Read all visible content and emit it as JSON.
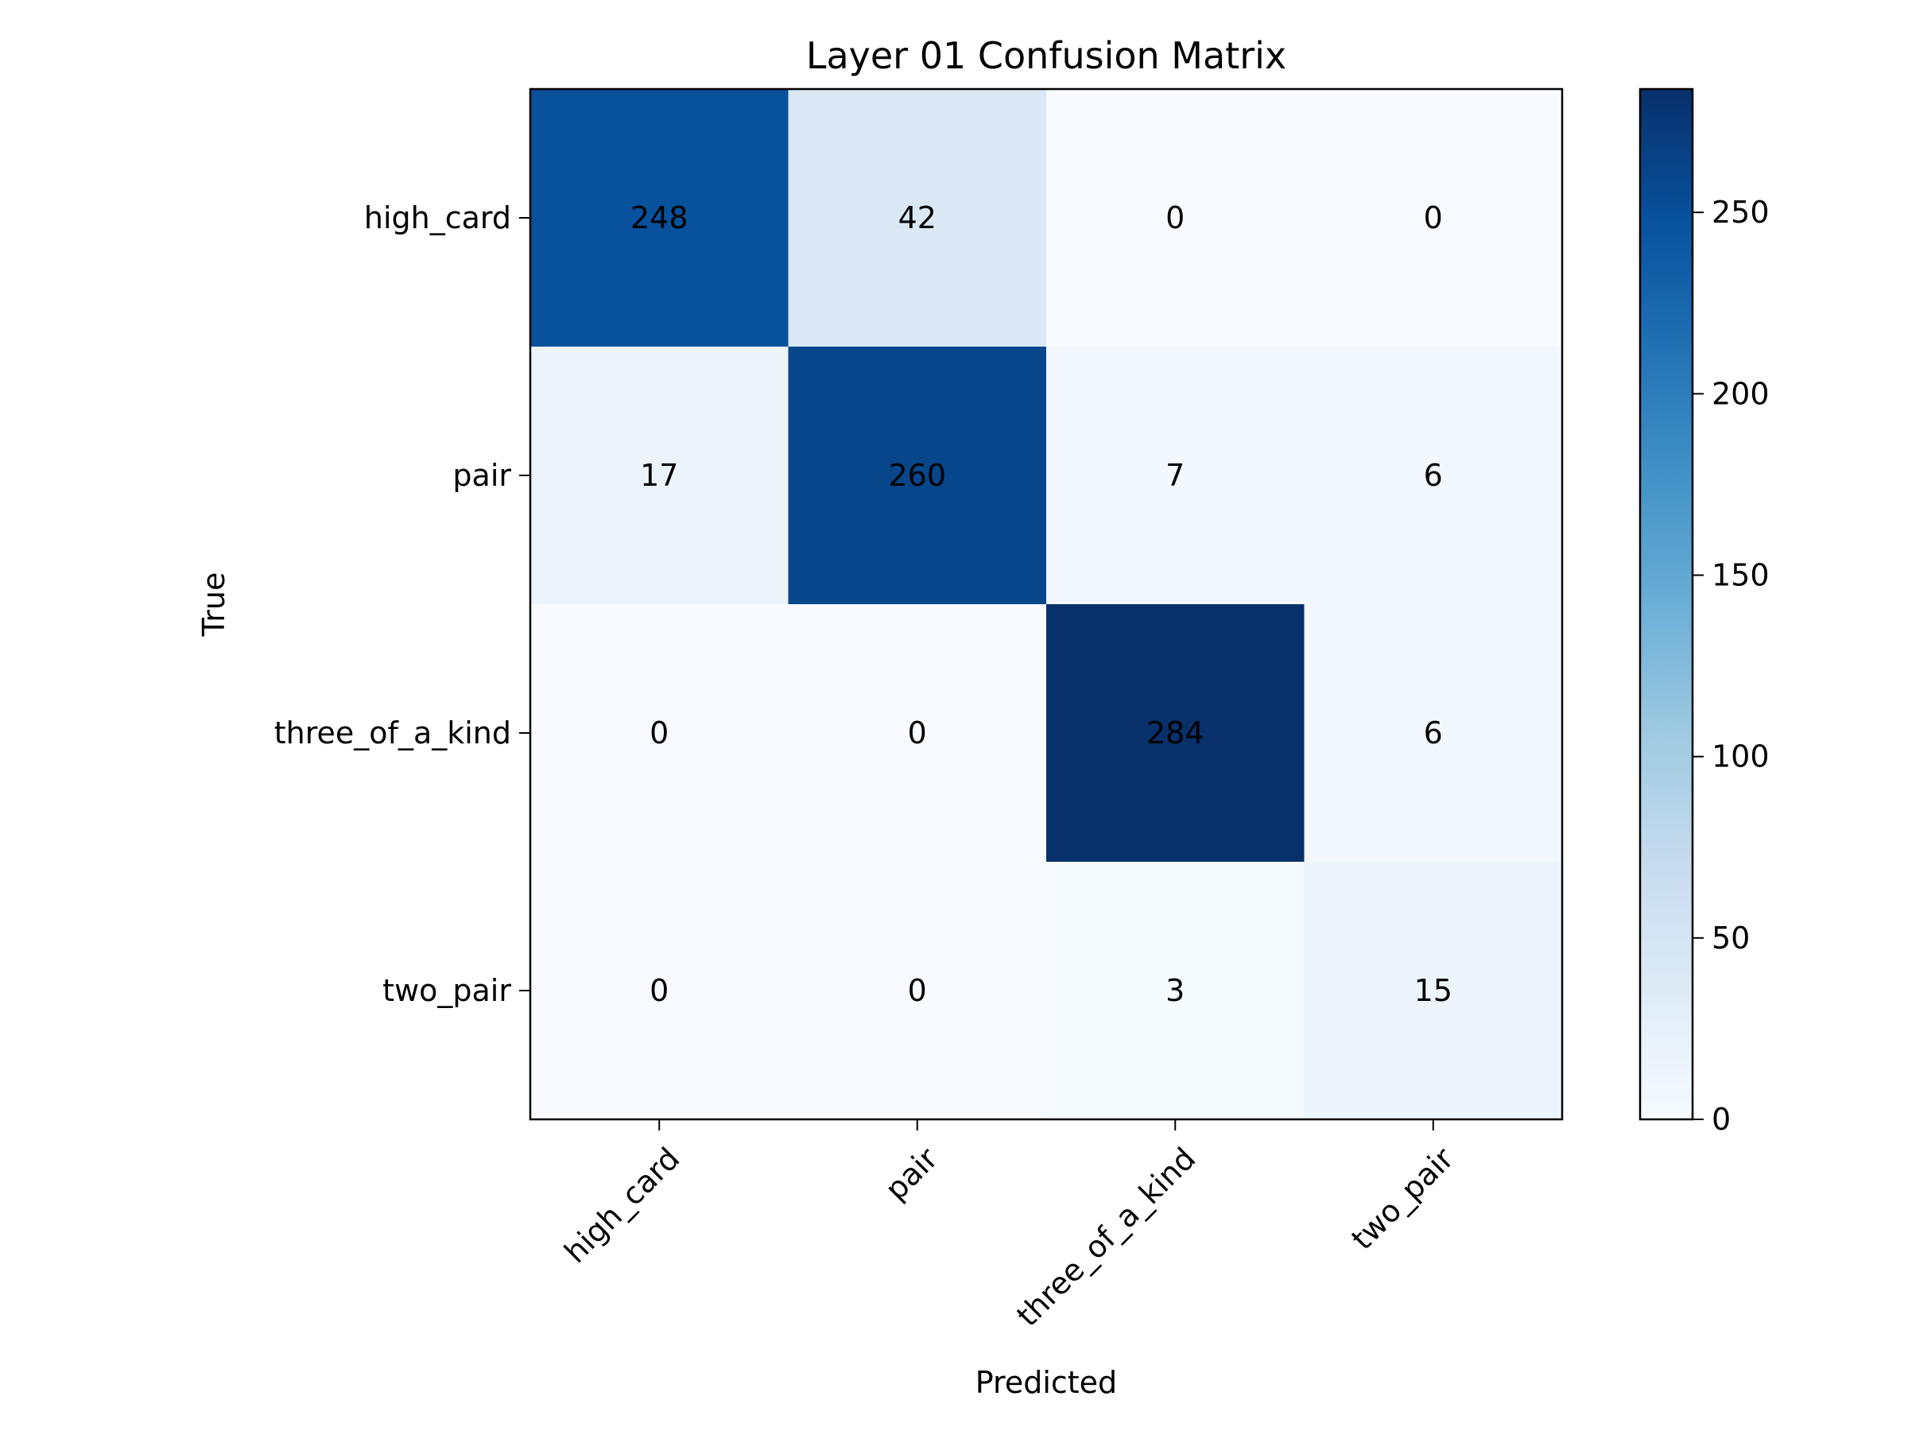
{
  "chart_data": {
    "type": "heatmap",
    "title": "Layer 01 Confusion Matrix",
    "xlabel": "Predicted",
    "ylabel": "True",
    "x_categories": [
      "high_card",
      "pair",
      "three_of_a_kind",
      "two_pair"
    ],
    "y_categories": [
      "high_card",
      "pair",
      "three_of_a_kind",
      "two_pair"
    ],
    "matrix": [
      [
        248,
        42,
        0,
        0
      ],
      [
        17,
        260,
        7,
        6
      ],
      [
        0,
        0,
        284,
        6
      ],
      [
        0,
        0,
        3,
        15
      ]
    ],
    "colorbar": {
      "min": 0,
      "max": 284,
      "ticks": [
        0,
        50,
        100,
        150,
        200,
        250
      ],
      "colormap": "Blues",
      "low_color": "#f7fbff",
      "high_color": "#08306b"
    },
    "x_tick_rotation_deg": 45,
    "grid": false
  }
}
